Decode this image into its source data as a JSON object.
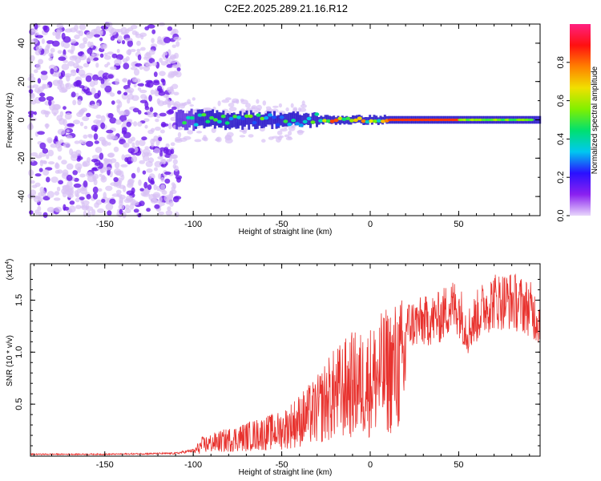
{
  "title": "C2E2.2025.289.21.16.R12",
  "colors": {
    "line": "#e8322e",
    "axis": "#000000",
    "blob_faint": "#d9c2f5",
    "blob_dark": "#6a18e8"
  },
  "chart_data": [
    {
      "type": "heatmap",
      "name": "spectrogram",
      "xlabel": "Height of straight line (km)",
      "ylabel": "Frequency (Hz)",
      "xlim": [
        -192,
        96
      ],
      "ylim": [
        -50,
        50
      ],
      "xticks": [
        -150,
        -100,
        -50,
        0,
        50
      ],
      "xtick_labels": [
        "-150",
        "-100",
        "-50",
        "0",
        "50"
      ],
      "yticks": [
        -40,
        -20,
        0,
        20,
        40
      ],
      "ytick_labels": [
        "-40",
        "-20",
        "0",
        "20",
        "40"
      ],
      "colorbar": {
        "label": "Normalized spectral amplitude",
        "range": [
          0,
          1
        ],
        "ticks": [
          0.0,
          0.2,
          0.4,
          0.6,
          0.8
        ],
        "tick_labels": [
          "0.0",
          "0.2",
          "0.4",
          "0.6",
          "0.8"
        ],
        "stops": [
          "#e8d6fb",
          "#8a20f0",
          "#2a10ff",
          "#00c8f0",
          "#00e070",
          "#80f000",
          "#f0e000",
          "#ff8000",
          "#ff1010",
          "#ff2080"
        ]
      },
      "features": [
        {
          "desc": "broadband noise speckle",
          "x_range": [
            -192,
            -108
          ],
          "y_range": [
            -50,
            50
          ],
          "amplitude": 0.2
        },
        {
          "desc": "narrow band centred near 0 Hz",
          "x_range": [
            -110,
            96
          ],
          "y_center": 0,
          "amplitude_peak": 0.85
        }
      ]
    },
    {
      "type": "line",
      "name": "snr",
      "xlabel": "Height of straight line (km)",
      "ylabel": "SNR (10 * v/v)",
      "y_scale_label": "(x10",
      "y_scale_exp": "4",
      "xlim": [
        -192,
        96
      ],
      "ylim": [
        0,
        1.85
      ],
      "xticks": [
        -150,
        -100,
        -50,
        0,
        50
      ],
      "xtick_labels": [
        "-150",
        "-100",
        "-50",
        "0",
        "50"
      ],
      "yticks": [
        0.5,
        1.0,
        1.5
      ],
      "ytick_labels": [
        "0.5",
        "1.0",
        "1.5"
      ],
      "envelope": {
        "x": [
          -192,
          -150,
          -110,
          -100,
          -95,
          -80,
          -70,
          -60,
          -50,
          -40,
          -30,
          -25,
          -20,
          -10,
          -5,
          0,
          10,
          20,
          30,
          40,
          45,
          50,
          55,
          60,
          65,
          70,
          80,
          90,
          96
        ],
        "y": [
          0.02,
          0.02,
          0.03,
          0.06,
          0.17,
          0.25,
          0.3,
          0.35,
          0.4,
          0.55,
          0.7,
          0.85,
          0.95,
          1.1,
          1.1,
          1.15,
          1.32,
          1.42,
          1.45,
          1.5,
          1.62,
          1.6,
          1.35,
          1.5,
          1.62,
          1.68,
          1.68,
          1.6,
          1.45
        ]
      }
    }
  ]
}
